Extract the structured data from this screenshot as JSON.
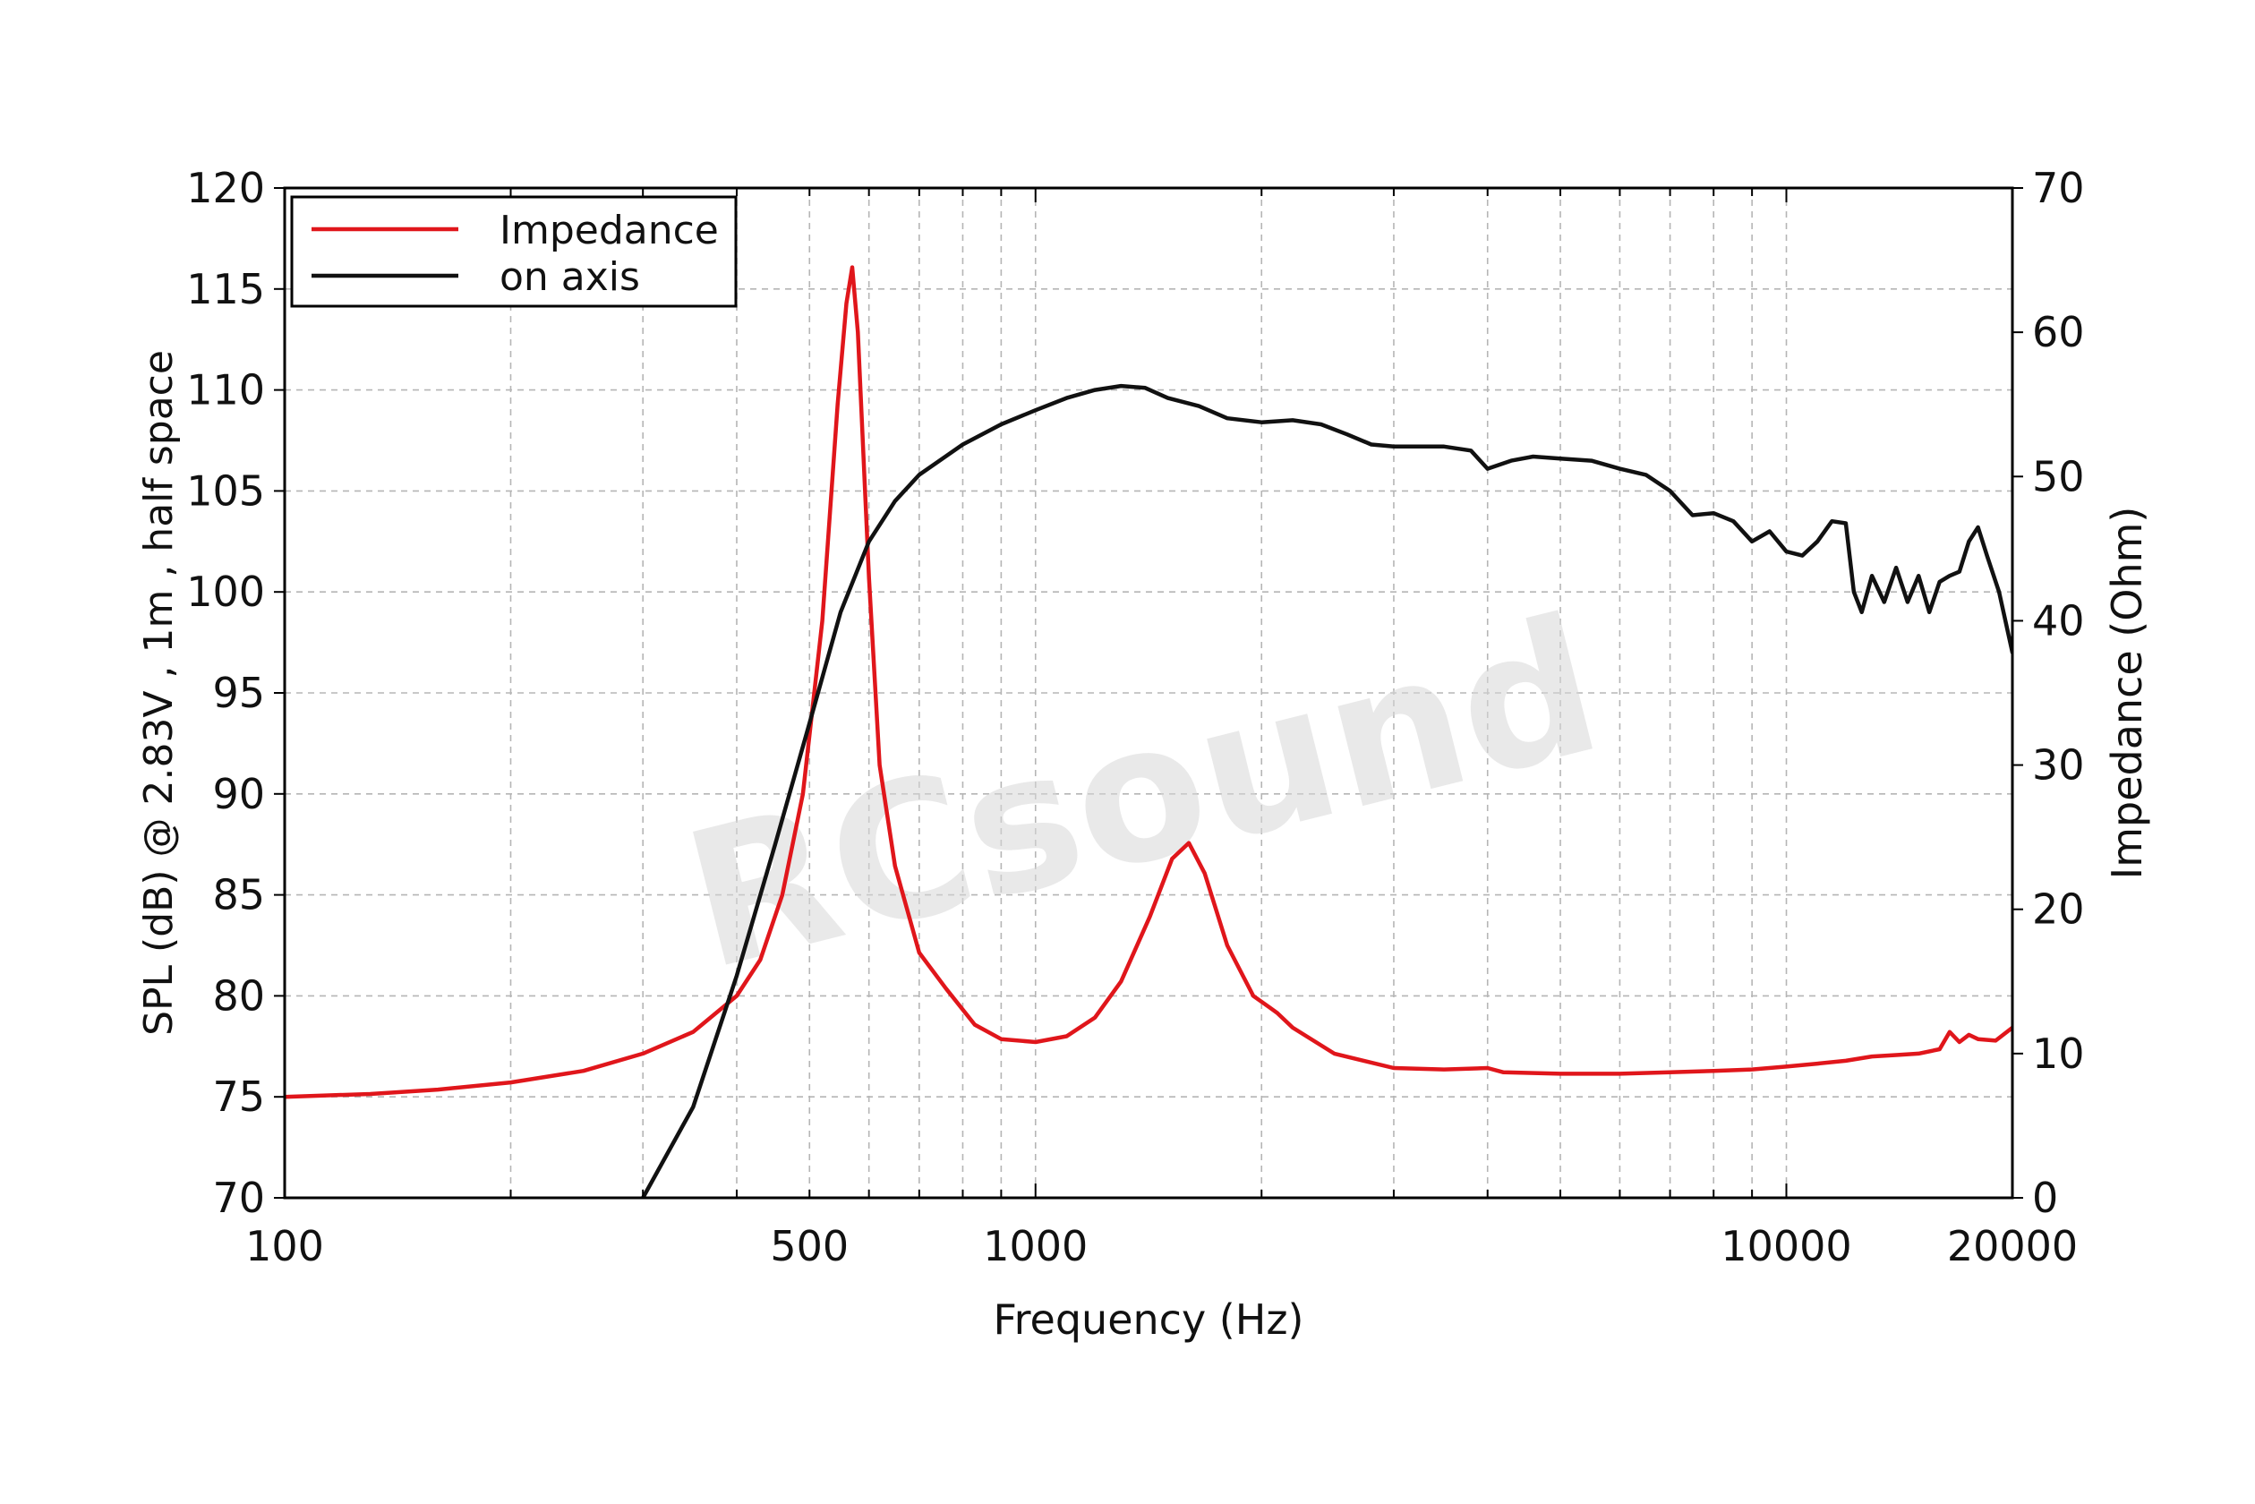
{
  "chart_data": {
    "type": "line",
    "xlabel": "Frequency (Hz)",
    "ylabel_left": "SPL (dB) @ 2.83V , 1m , half space",
    "ylabel_right": "Impedance (Ohm)",
    "x_scale": "log",
    "xlim": [
      100,
      20000
    ],
    "ylim_left": [
      70,
      120
    ],
    "ylim_right": [
      0,
      70
    ],
    "x_tick_labels": [
      100,
      500,
      1000,
      10000,
      20000
    ],
    "y_left_ticks": [
      70,
      75,
      80,
      85,
      90,
      95,
      100,
      105,
      110,
      115,
      120
    ],
    "y_right_ticks": [
      0,
      10,
      20,
      30,
      40,
      50,
      60,
      70
    ],
    "grid": true,
    "legend_position": "top-left",
    "series": [
      {
        "name": "Impedance",
        "axis": "right",
        "color": "#e0161b",
        "points": [
          [
            100,
            7.0
          ],
          [
            130,
            7.2
          ],
          [
            160,
            7.5
          ],
          [
            200,
            8.0
          ],
          [
            250,
            8.8
          ],
          [
            300,
            10.0
          ],
          [
            350,
            11.5
          ],
          [
            400,
            14.0
          ],
          [
            430,
            16.5
          ],
          [
            460,
            21.0
          ],
          [
            490,
            28.0
          ],
          [
            520,
            40.0
          ],
          [
            545,
            55.0
          ],
          [
            560,
            62.0
          ],
          [
            570,
            64.5
          ],
          [
            580,
            60.0
          ],
          [
            600,
            43.0
          ],
          [
            620,
            30.0
          ],
          [
            650,
            23.0
          ],
          [
            700,
            17.0
          ],
          [
            760,
            14.5
          ],
          [
            830,
            12.0
          ],
          [
            900,
            11.0
          ],
          [
            1000,
            10.8
          ],
          [
            1100,
            11.2
          ],
          [
            1200,
            12.5
          ],
          [
            1300,
            15.0
          ],
          [
            1420,
            19.5
          ],
          [
            1520,
            23.5
          ],
          [
            1600,
            24.6
          ],
          [
            1680,
            22.5
          ],
          [
            1800,
            17.5
          ],
          [
            1950,
            14.0
          ],
          [
            2050,
            13.2
          ],
          [
            2100,
            12.8
          ],
          [
            2200,
            11.8
          ],
          [
            2500,
            10.0
          ],
          [
            3000,
            9.0
          ],
          [
            3500,
            8.9
          ],
          [
            4000,
            9.0
          ],
          [
            4200,
            8.7
          ],
          [
            5000,
            8.6
          ],
          [
            6000,
            8.6
          ],
          [
            7000,
            8.7
          ],
          [
            8000,
            8.8
          ],
          [
            9000,
            8.9
          ],
          [
            10000,
            9.1
          ],
          [
            11000,
            9.3
          ],
          [
            12000,
            9.5
          ],
          [
            13000,
            9.8
          ],
          [
            14000,
            9.9
          ],
          [
            15000,
            10.0
          ],
          [
            16000,
            10.3
          ],
          [
            16500,
            11.5
          ],
          [
            17000,
            10.8
          ],
          [
            17500,
            11.3
          ],
          [
            18000,
            11.0
          ],
          [
            19000,
            10.9
          ],
          [
            20000,
            11.8
          ]
        ]
      },
      {
        "name": "on axis",
        "axis": "left",
        "color": "#111111",
        "points": [
          [
            300,
            70.0
          ],
          [
            350,
            74.5
          ],
          [
            400,
            81.0
          ],
          [
            450,
            87.5
          ],
          [
            500,
            93.5
          ],
          [
            550,
            99.0
          ],
          [
            600,
            102.5
          ],
          [
            650,
            104.5
          ],
          [
            700,
            105.8
          ],
          [
            800,
            107.3
          ],
          [
            900,
            108.3
          ],
          [
            1000,
            109.0
          ],
          [
            1100,
            109.6
          ],
          [
            1200,
            110.0
          ],
          [
            1300,
            110.2
          ],
          [
            1400,
            110.1
          ],
          [
            1500,
            109.6
          ],
          [
            1650,
            109.2
          ],
          [
            1800,
            108.6
          ],
          [
            2000,
            108.4
          ],
          [
            2200,
            108.5
          ],
          [
            2400,
            108.3
          ],
          [
            2600,
            107.8
          ],
          [
            2800,
            107.3
          ],
          [
            3000,
            107.2
          ],
          [
            3500,
            107.2
          ],
          [
            3800,
            107.0
          ],
          [
            4000,
            106.1
          ],
          [
            4300,
            106.5
          ],
          [
            4600,
            106.7
          ],
          [
            5000,
            106.6
          ],
          [
            5500,
            106.5
          ],
          [
            6000,
            106.1
          ],
          [
            6500,
            105.8
          ],
          [
            7000,
            105.0
          ],
          [
            7500,
            103.8
          ],
          [
            8000,
            103.9
          ],
          [
            8500,
            103.5
          ],
          [
            9000,
            102.5
          ],
          [
            9500,
            103.0
          ],
          [
            10000,
            102.0
          ],
          [
            10500,
            101.8
          ],
          [
            11000,
            102.5
          ],
          [
            11500,
            103.5
          ],
          [
            12000,
            103.4
          ],
          [
            12300,
            100.0
          ],
          [
            12600,
            99.0
          ],
          [
            13000,
            100.8
          ],
          [
            13500,
            99.5
          ],
          [
            14000,
            101.2
          ],
          [
            14500,
            99.5
          ],
          [
            15000,
            100.8
          ],
          [
            15500,
            99.0
          ],
          [
            16000,
            100.5
          ],
          [
            16500,
            100.8
          ],
          [
            17000,
            101.0
          ],
          [
            17500,
            102.5
          ],
          [
            18000,
            103.2
          ],
          [
            18500,
            101.8
          ],
          [
            19200,
            100.0
          ],
          [
            20000,
            97.0
          ]
        ]
      }
    ]
  },
  "watermark": "RCsound"
}
